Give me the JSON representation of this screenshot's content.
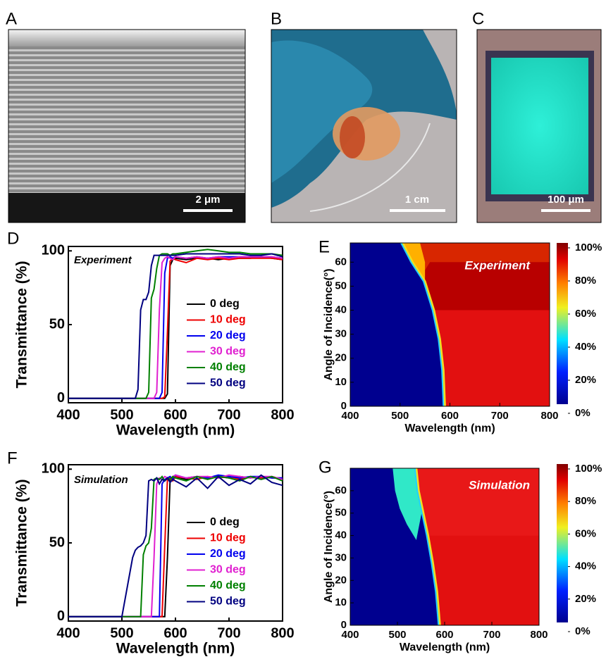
{
  "images": [
    {
      "panel_label": "A",
      "scale_bar": "2 μm"
    },
    {
      "panel_label": "B",
      "scale_bar": "1 cm"
    },
    {
      "panel_label": "C",
      "scale_bar": "100 μm"
    }
  ],
  "chart_data": [
    {
      "type": "line",
      "panel_label": "D",
      "annotation": "Experiment",
      "x_label": "Wavelength (nm)",
      "y_label": "Transmittance (%)",
      "xlim": [
        400,
        800
      ],
      "ylim": [
        -3,
        103
      ],
      "xticks": [
        400,
        500,
        600,
        700,
        800
      ],
      "yticks": [
        0,
        50,
        100
      ],
      "x": [
        400,
        500,
        520,
        525,
        530,
        535,
        540,
        545,
        550,
        555,
        560,
        565,
        570,
        575,
        580,
        585,
        590,
        595,
        600,
        620,
        640,
        660,
        680,
        700,
        720,
        740,
        760,
        780,
        800
      ],
      "series": [
        {
          "name": "0 deg",
          "color": "#000000",
          "values": [
            0,
            0,
            0,
            0,
            0,
            0,
            0,
            0,
            0,
            0,
            0,
            0,
            0,
            0,
            0,
            3,
            90,
            94,
            95,
            94,
            95,
            95,
            94,
            95,
            95,
            95,
            96,
            95,
            94
          ]
        },
        {
          "name": "10 deg",
          "color": "#ee0000",
          "values": [
            0,
            0,
            0,
            0,
            0,
            0,
            0,
            0,
            0,
            0,
            0,
            0,
            0,
            0,
            1,
            45,
            93,
            95,
            94,
            92,
            95,
            94,
            95,
            94,
            95,
            95,
            95,
            95,
            94
          ]
        },
        {
          "name": "20 deg",
          "color": "#0000ee",
          "values": [
            0,
            0,
            0,
            0,
            0,
            0,
            0,
            0,
            0,
            0,
            0,
            0,
            0,
            4,
            85,
            95,
            96,
            95,
            96,
            95,
            96,
            95,
            96,
            96,
            96,
            96,
            96,
            96,
            95
          ]
        },
        {
          "name": "30 deg",
          "color": "#e020d0",
          "values": [
            0,
            0,
            0,
            0,
            0,
            0,
            0,
            0,
            0,
            0,
            0,
            4,
            60,
            92,
            95,
            96,
            95,
            94,
            96,
            95,
            96,
            95,
            96,
            95,
            96,
            96,
            96,
            96,
            95
          ]
        },
        {
          "name": "40 deg",
          "color": "#008000",
          "values": [
            0,
            0,
            0,
            0,
            0,
            0,
            0,
            0,
            4,
            68,
            74,
            88,
            97,
            98,
            98,
            98,
            97,
            98,
            98,
            99,
            100,
            101,
            100,
            99,
            99,
            98,
            98,
            98,
            97
          ]
        },
        {
          "name": "50 deg",
          "color": "#000080",
          "values": [
            0,
            0,
            0,
            0,
            6,
            60,
            67,
            67,
            72,
            90,
            97,
            97,
            97,
            97,
            97,
            97,
            97,
            97,
            97,
            98,
            98,
            98,
            98,
            98,
            98,
            97,
            97,
            98,
            96
          ]
        }
      ]
    },
    {
      "type": "heatmap",
      "panel_label": "E",
      "annotation": "Experiment",
      "x_label": "Wavelength (nm)",
      "y_label": "Angle of Incidence(°)",
      "xlim": [
        400,
        800
      ],
      "ylim": [
        0,
        68
      ],
      "xticks": [
        400,
        500,
        600,
        700,
        800
      ],
      "yticks": [
        0,
        10,
        20,
        30,
        40,
        50,
        60
      ],
      "colorbar_lim": [
        0,
        100
      ],
      "colorbar_ticks": [
        {
          "value": 0,
          "label": "0%"
        },
        {
          "value": 20,
          "label": "20%"
        },
        {
          "value": 40,
          "label": "40%"
        },
        {
          "value": 60,
          "label": "60%"
        },
        {
          "value": 80,
          "label": "80%"
        },
        {
          "value": 100,
          "label": "100%"
        }
      ]
    },
    {
      "type": "line",
      "panel_label": "F",
      "annotation": "Simulation",
      "x_label": "Wavelength (nm)",
      "y_label": "Transmittance (%)",
      "xlim": [
        400,
        800
      ],
      "ylim": [
        -3,
        103
      ],
      "xticks": [
        400,
        500,
        600,
        700,
        800
      ],
      "yticks": [
        0,
        50,
        100
      ],
      "x": [
        400,
        500,
        520,
        525,
        530,
        535,
        540,
        545,
        550,
        555,
        560,
        565,
        570,
        575,
        580,
        585,
        590,
        595,
        600,
        620,
        640,
        660,
        680,
        700,
        720,
        740,
        760,
        780,
        800
      ],
      "series": [
        {
          "name": "0 deg",
          "color": "#000000",
          "values": [
            0,
            0,
            0,
            0,
            0,
            0,
            0,
            0,
            0,
            0,
            0,
            0,
            0,
            0,
            0,
            40,
            93,
            94,
            95,
            93,
            95,
            94,
            95,
            94,
            95,
            94,
            95,
            94,
            94
          ]
        },
        {
          "name": "10 deg",
          "color": "#ee0000",
          "values": [
            0,
            0,
            0,
            0,
            0,
            0,
            0,
            0,
            0,
            0,
            0,
            0,
            0,
            0,
            48,
            93,
            94,
            92,
            95,
            94,
            93,
            95,
            94,
            95,
            93,
            95,
            94,
            95,
            93
          ]
        },
        {
          "name": "20 deg",
          "color": "#0000ee",
          "values": [
            0,
            0,
            0,
            0,
            0,
            0,
            0,
            0,
            0,
            0,
            0,
            0,
            0,
            90,
            93,
            94,
            95,
            93,
            96,
            94,
            95,
            94,
            96,
            95,
            94,
            95,
            95,
            94,
            94
          ]
        },
        {
          "name": "30 deg",
          "color": "#e020d0",
          "values": [
            0,
            0,
            0,
            0,
            0,
            0,
            0,
            0,
            0,
            0,
            40,
            90,
            94,
            93,
            95,
            94,
            93,
            95,
            96,
            94,
            95,
            95,
            94,
            96,
            95,
            94,
            95,
            95,
            93
          ]
        },
        {
          "name": "40 deg",
          "color": "#008000",
          "values": [
            0,
            0,
            0,
            0,
            0,
            0,
            42,
            48,
            50,
            60,
            93,
            94,
            93,
            95,
            92,
            94,
            93,
            95,
            94,
            92,
            95,
            93,
            95,
            94,
            92,
            95,
            93,
            95,
            92
          ]
        },
        {
          "name": "50 deg",
          "color": "#000080",
          "values": [
            0,
            0,
            40,
            45,
            47,
            48,
            50,
            55,
            92,
            93,
            92,
            94,
            90,
            93,
            92,
            94,
            91,
            93,
            92,
            88,
            94,
            87,
            95,
            89,
            93,
            90,
            96,
            91,
            89
          ]
        }
      ]
    },
    {
      "type": "heatmap",
      "panel_label": "G",
      "annotation": "Simulation",
      "x_label": "Wavelength (nm)",
      "y_label": "Angle of Incidence(°)",
      "xlim": [
        400,
        800
      ],
      "ylim": [
        0,
        70
      ],
      "xticks": [
        400,
        500,
        600,
        700,
        800
      ],
      "yticks": [
        0,
        10,
        20,
        30,
        40,
        50,
        60
      ],
      "colorbar_lim": [
        0,
        100
      ],
      "colorbar_ticks": [
        {
          "value": 0,
          "label": "0%"
        },
        {
          "value": 20,
          "label": "20%"
        },
        {
          "value": 40,
          "label": "40%"
        },
        {
          "value": 60,
          "label": "60%"
        },
        {
          "value": 80,
          "label": "80%"
        },
        {
          "value": 100,
          "label": "100%"
        }
      ]
    }
  ]
}
